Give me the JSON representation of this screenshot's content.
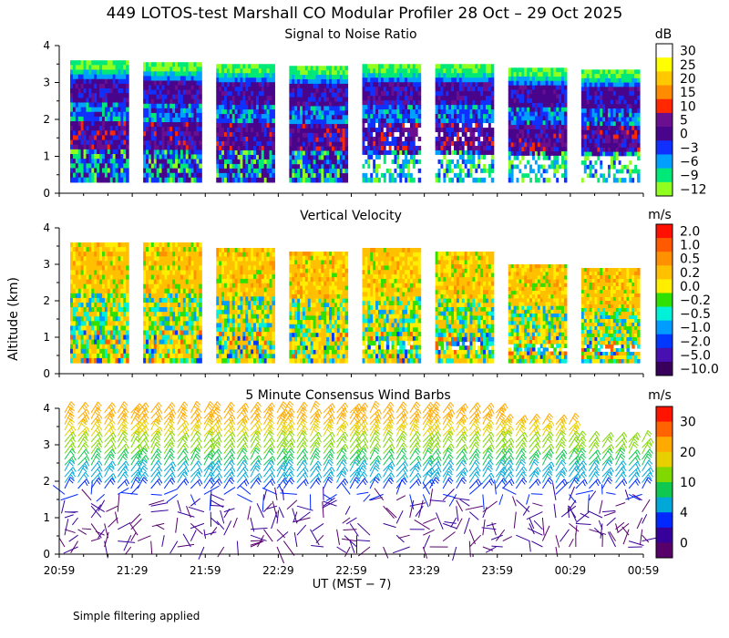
{
  "figure": {
    "title": "449 LOTOS-test Marshall CO Modular Profiler 28 Oct – 29 Oct 2025",
    "y_axis_label": "Altitude (km)",
    "x_axis_label": "UT  (MST − 7)",
    "footnote": "Simple filtering applied",
    "x_ticks": [
      "20:59",
      "21:29",
      "21:59",
      "22:29",
      "22:59",
      "23:29",
      "23:59",
      "00:29",
      "00:59"
    ],
    "y_ticks": [
      "0",
      "1",
      "2",
      "3",
      "4"
    ]
  },
  "chart_data": [
    {
      "type": "heatmap",
      "title": "Signal to Noise Ratio",
      "unit": "dB",
      "ylim": [
        0,
        4
      ],
      "colorbar": {
        "labels": [
          "30",
          "25",
          "20",
          "15",
          "10",
          "5",
          "0",
          "−3",
          "−6",
          "−9",
          "−12"
        ],
        "colors": [
          "#ffffff",
          "#ffff00",
          "#ffc800",
          "#ff8c00",
          "#ff2800",
          "#6a0f8f",
          "#48048a",
          "#1030ff",
          "#00a0ff",
          "#00e878",
          "#90ff20"
        ]
      },
      "blocks": [
        {
          "start": "20:59",
          "end": "21:23",
          "top_km": 3.6,
          "bottom_km": 0.3
        },
        {
          "start": "21:29",
          "end": "21:53",
          "top_km": 3.55,
          "bottom_km": 0.3
        },
        {
          "start": "21:59",
          "end": "22:23",
          "top_km": 3.5,
          "bottom_km": 0.3
        },
        {
          "start": "22:29",
          "end": "22:53",
          "top_km": 3.45,
          "bottom_km": 0.3
        },
        {
          "start": "22:59",
          "end": "23:23",
          "top_km": 3.5,
          "bottom_km": 0.3
        },
        {
          "start": "23:29",
          "end": "23:53",
          "top_km": 3.5,
          "bottom_km": 0.3
        },
        {
          "start": "23:59",
          "end": "00:23",
          "top_km": 3.4,
          "bottom_km": 0.3
        },
        {
          "start": "00:29",
          "end": "00:53",
          "top_km": 3.35,
          "bottom_km": 0.3
        }
      ]
    },
    {
      "type": "heatmap",
      "title": "Vertical Velocity",
      "unit": "m/s",
      "ylim": [
        0,
        4
      ],
      "colorbar": {
        "labels": [
          "2.0",
          "1.0",
          "0.5",
          "0.2",
          "0.0",
          "−0.2",
          "−0.5",
          "−1.0",
          "−2.0",
          "−5.0",
          "−10.0"
        ],
        "colors": [
          "#ff1000",
          "#ff5a00",
          "#ff9000",
          "#ffc000",
          "#ffee00",
          "#30e000",
          "#00f0d8",
          "#009cff",
          "#0038ff",
          "#4810b0",
          "#38005a"
        ]
      },
      "blocks": [
        {
          "start": "20:59",
          "end": "21:23",
          "top_km": 3.6,
          "bottom_km": 0.3
        },
        {
          "start": "21:29",
          "end": "21:53",
          "top_km": 3.6,
          "bottom_km": 0.3
        },
        {
          "start": "21:59",
          "end": "22:23",
          "top_km": 3.45,
          "bottom_km": 0.3
        },
        {
          "start": "22:29",
          "end": "22:53",
          "top_km": 3.35,
          "bottom_km": 0.3
        },
        {
          "start": "22:59",
          "end": "23:23",
          "top_km": 3.45,
          "bottom_km": 0.3
        },
        {
          "start": "23:29",
          "end": "23:53",
          "top_km": 3.35,
          "bottom_km": 0.3
        },
        {
          "start": "23:59",
          "end": "00:23",
          "top_km": 3.0,
          "bottom_km": 0.3
        },
        {
          "start": "00:29",
          "end": "00:53",
          "top_km": 2.9,
          "bottom_km": 0.3
        }
      ]
    },
    {
      "type": "wind_barbs",
      "title": "5 Minute Consensus Wind Barbs",
      "unit": "m/s",
      "ylim": [
        0,
        4
      ],
      "colorbar": {
        "labels": [
          "30",
          "20",
          "10",
          "4",
          "0"
        ],
        "colors": [
          "#ff1400",
          "#ff6400",
          "#ffaa00",
          "#e8d000",
          "#80d800",
          "#10c850",
          "#00a8d8",
          "#0028ff",
          "#38009a",
          "#58006a"
        ]
      },
      "groups": [
        {
          "start": "20:59",
          "end": "21:24",
          "top_km": 4.0
        },
        {
          "start": "21:29",
          "end": "21:54",
          "top_km": 4.0
        },
        {
          "start": "21:59",
          "end": "22:24",
          "top_km": 4.0
        },
        {
          "start": "22:29",
          "end": "22:54",
          "top_km": 3.95
        },
        {
          "start": "22:59",
          "end": "23:24",
          "top_km": 4.0
        },
        {
          "start": "23:29",
          "end": "23:54",
          "top_km": 3.95
        },
        {
          "start": "23:59",
          "end": "00:24",
          "top_km": 3.6
        },
        {
          "start": "00:29",
          "end": "00:54",
          "top_km": 3.2
        }
      ]
    }
  ]
}
